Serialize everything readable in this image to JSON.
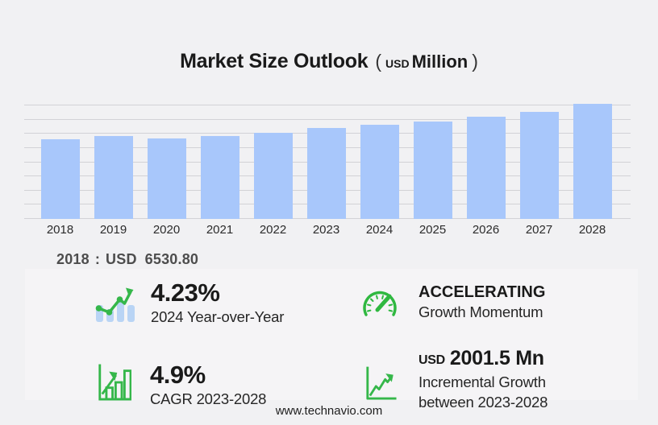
{
  "header": {
    "title": "Market Size Outlook",
    "unit_paren_open": "(",
    "unit_currency": "USD",
    "unit_label": "Million",
    "unit_paren_close": ")"
  },
  "chart_data": {
    "type": "bar",
    "title": "Market Size Outlook (USD Million)",
    "unit": "USD Million",
    "categories": [
      "2018",
      "2019",
      "2020",
      "2021",
      "2022",
      "2023",
      "2024",
      "2025",
      "2026",
      "2027",
      "2028"
    ],
    "values": [
      6530.8,
      6775,
      6557,
      6794,
      7037,
      7407,
      7720,
      7940,
      8372,
      8728,
      9409
    ],
    "xlabel": "",
    "ylabel": "",
    "ylim": [
      0,
      10650
    ],
    "grid": true,
    "gridline_count": 9,
    "legend_position": "none",
    "bar_color": "#a8c7fb",
    "annotations": [
      "2018 : USD 6530.80"
    ]
  },
  "base_year": {
    "year": "2018",
    "separator": ":",
    "currency": "USD",
    "value": "6530.80"
  },
  "stats": [
    {
      "icon": "trend-bars-icon",
      "value": "4.23%",
      "label": "2024 Year-over-Year"
    },
    {
      "icon": "gauge-icon",
      "value": "ACCELERATING",
      "label": "Growth Momentum"
    },
    {
      "icon": "growth-chart-icon",
      "value": "4.9%",
      "label": "CAGR 2023-2028"
    },
    {
      "icon": "incremental-line-icon",
      "value_prefix": "USD",
      "value": "2001.5 Mn",
      "label": "Incremental Growth",
      "label2": "between 2023-2028"
    }
  ],
  "footer": {
    "website": "www.technavio.com"
  },
  "colors": {
    "background": "#f1f1f3",
    "panel": "#f5f4f6",
    "bar": "#a8c7fb",
    "grid": "#d2d2d6",
    "green": "#35b74a",
    "icon_bar_blue": "#b9d4f5",
    "text_dark": "#1a1a1a",
    "text_gray": "#4d4d4d"
  }
}
